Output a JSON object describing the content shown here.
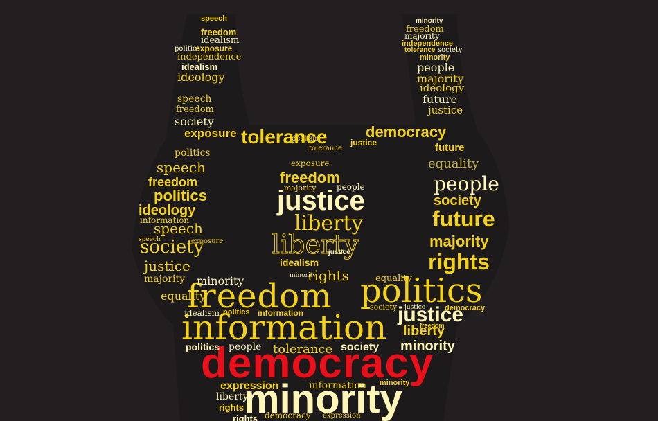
{
  "image": {
    "background_color": "#231f20",
    "palette": {
      "light": "#fff6b8",
      "yellow": "#f5d21a",
      "dark": "#bfae3a",
      "red": "#e8101a"
    }
  },
  "words": {
    "democracy_main": "democracy",
    "minority_main": "minority",
    "information_main": "information",
    "freedom_main": "freedom",
    "politics_main": "politics",
    "justice_head": "justice",
    "liberty_head": "liberty",
    "liberty_head_outline": "liberty",
    "tolerance_top": "tolerance",
    "democracy_top": "democracy",
    "rights_right": "rights",
    "future_right": "future",
    "people_right": "people",
    "society_right": "society",
    "majority_right": "majority",
    "justice_right": "justice",
    "liberty_right": "liberty",
    "minority_right": "minority",
    "equality_right": "equality",
    "speech_left": "speech",
    "society_left": "society",
    "politics_left": "politics",
    "ideology_left": "ideology",
    "freedom_left": "freedom",
    "justice_left": "justice",
    "exposure_left": "exposure",
    "minority_left": "minority",
    "equality_left": "equality",
    "idealism_left": "idealism",
    "information_left": "information",
    "majority_left": "majority",
    "speech_left2": "speech",
    "society_left2": "society",
    "politics_left2": "politics",
    "freedom_left2": "freedom",
    "speech_left3": "speech",
    "ideology_left2": "ideology",
    "idealism_left2": "idealism",
    "independence_left": "independence",
    "exposure_left2": "exposure",
    "politics_left3": "politics",
    "idealism_left3": "idealism",
    "freedom_left3": "freedom",
    "speech_left4": "speech",
    "people_right2": "people",
    "majority_right2": "majority",
    "ideology_right": "ideology",
    "future_right2": "future",
    "justice_right2": "justice",
    "minority_right2": "minority",
    "freedom_right": "freedom",
    "majority_right3": "majority",
    "independence_right": "independence",
    "tolerance_right": "tolerance",
    "society_right2": "society",
    "minority_right3": "minority",
    "expression_bottom": "expression",
    "information_bottom": "information",
    "liberty_bottom": "liberty",
    "rights_bottom": "rights",
    "democracy_bottom": "democracy",
    "expression_bottom2": "expression",
    "rights_bottom2": "rights",
    "people_mid": "people",
    "tolerance_mid": "tolerance",
    "society_mid": "society",
    "minority_mid": "minority",
    "politics_mid": "politics",
    "information_mid": "information",
    "freedom_mid": "freedom",
    "idealism_mid": "idealism",
    "minority_mid2": "minority",
    "rights_mid": "rights",
    "society_mid2": "society",
    "idealism_head": "idealism",
    "freedom_head": "freedom",
    "majority_head": "majority",
    "people_head": "people",
    "exposure_head": "exposure",
    "speech_mid": "speech",
    "justice_mid": "justice",
    "exposure_top": "exposure",
    "tolerance_top2": "tolerance",
    "idealism_top": "idealism",
    "justice_top": "justice",
    "future_mid": "future",
    "equality_mid": "equality",
    "democracy_mid": "democracy",
    "justice_mid2": "justice"
  }
}
